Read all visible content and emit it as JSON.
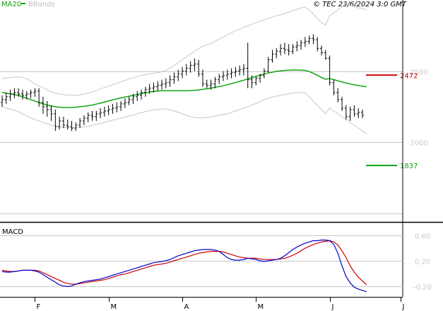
{
  "header": {
    "ma_label": "MA20",
    "bbands_label": "BBands",
    "copyright": "© TEC 23/6/2024 3:0 GMT"
  },
  "colors": {
    "price_bars": "#000000",
    "ma20": "#12a312",
    "bbands": "#c8c8c8",
    "grid": "#c8c8c8",
    "resistance": "#cc0000",
    "support": "#12a312",
    "macd": "#0000cc",
    "signal": "#cc0000",
    "frame": "#000000"
  },
  "chart_data": [
    {
      "type": "line",
      "name": "price-panel",
      "ylim": [
        1450,
        3000
      ],
      "ytick_values": [
        2500,
        2000,
        1500
      ],
      "ytick_labels": [
        "2500",
        "2000",
        ""
      ],
      "resistance": {
        "value": 2472,
        "label": "2472"
      },
      "support": {
        "value": 1837,
        "label": "1837"
      },
      "x_labels": [
        "F",
        "M",
        "A",
        "M",
        "J",
        "J"
      ],
      "ohlc": [
        [
          2280,
          2330,
          2250,
          2300
        ],
        [
          2300,
          2350,
          2270,
          2320
        ],
        [
          2320,
          2370,
          2290,
          2340
        ],
        [
          2340,
          2380,
          2310,
          2350
        ],
        [
          2350,
          2380,
          2320,
          2340
        ],
        [
          2340,
          2370,
          2300,
          2330
        ],
        [
          2330,
          2360,
          2300,
          2340
        ],
        [
          2340,
          2370,
          2310,
          2350
        ],
        [
          2350,
          2380,
          2320,
          2360
        ],
        [
          2360,
          2380,
          2250,
          2280
        ],
        [
          2280,
          2320,
          2200,
          2250
        ],
        [
          2250,
          2290,
          2180,
          2230
        ],
        [
          2230,
          2260,
          2150,
          2200
        ],
        [
          2200,
          2230,
          2080,
          2110
        ],
        [
          2110,
          2180,
          2090,
          2150
        ],
        [
          2150,
          2180,
          2100,
          2120
        ],
        [
          2120,
          2160,
          2090,
          2110
        ],
        [
          2110,
          2150,
          2080,
          2100
        ],
        [
          2100,
          2140,
          2080,
          2120
        ],
        [
          2120,
          2170,
          2100,
          2150
        ],
        [
          2150,
          2190,
          2120,
          2170
        ],
        [
          2170,
          2210,
          2140,
          2190
        ],
        [
          2190,
          2220,
          2150,
          2180
        ],
        [
          2180,
          2220,
          2150,
          2200
        ],
        [
          2200,
          2240,
          2170,
          2210
        ],
        [
          2210,
          2250,
          2180,
          2220
        ],
        [
          2220,
          2260,
          2190,
          2230
        ],
        [
          2230,
          2270,
          2200,
          2240
        ],
        [
          2240,
          2280,
          2210,
          2250
        ],
        [
          2250,
          2290,
          2220,
          2270
        ],
        [
          2270,
          2310,
          2240,
          2280
        ],
        [
          2280,
          2320,
          2260,
          2300
        ],
        [
          2300,
          2340,
          2270,
          2320
        ],
        [
          2320,
          2360,
          2290,
          2330
        ],
        [
          2330,
          2370,
          2300,
          2350
        ],
        [
          2350,
          2390,
          2320,
          2370
        ],
        [
          2370,
          2410,
          2340,
          2380
        ],
        [
          2380,
          2420,
          2350,
          2390
        ],
        [
          2390,
          2430,
          2360,
          2400
        ],
        [
          2400,
          2440,
          2370,
          2410
        ],
        [
          2410,
          2450,
          2380,
          2420
        ],
        [
          2420,
          2470,
          2390,
          2440
        ],
        [
          2440,
          2490,
          2410,
          2460
        ],
        [
          2460,
          2510,
          2430,
          2480
        ],
        [
          2480,
          2530,
          2450,
          2500
        ],
        [
          2500,
          2550,
          2470,
          2520
        ],
        [
          2520,
          2570,
          2490,
          2540
        ],
        [
          2540,
          2590,
          2500,
          2550
        ],
        [
          2550,
          2580,
          2460,
          2480
        ],
        [
          2480,
          2510,
          2390,
          2410
        ],
        [
          2410,
          2440,
          2380,
          2400
        ],
        [
          2400,
          2440,
          2370,
          2410
        ],
        [
          2410,
          2460,
          2380,
          2440
        ],
        [
          2440,
          2480,
          2410,
          2460
        ],
        [
          2460,
          2500,
          2430,
          2470
        ],
        [
          2470,
          2510,
          2440,
          2480
        ],
        [
          2480,
          2520,
          2450,
          2490
        ],
        [
          2490,
          2530,
          2460,
          2500
        ],
        [
          2500,
          2540,
          2470,
          2510
        ],
        [
          2510,
          2550,
          2470,
          2520
        ],
        [
          2520,
          2700,
          2380,
          2440
        ],
        [
          2440,
          2470,
          2380,
          2420
        ],
        [
          2420,
          2460,
          2400,
          2450
        ],
        [
          2450,
          2480,
          2420,
          2470
        ],
        [
          2470,
          2520,
          2450,
          2500
        ],
        [
          2500,
          2600,
          2490,
          2580
        ],
        [
          2580,
          2650,
          2560,
          2620
        ],
        [
          2620,
          2660,
          2590,
          2640
        ],
        [
          2640,
          2690,
          2610,
          2660
        ],
        [
          2660,
          2700,
          2620,
          2650
        ],
        [
          2650,
          2690,
          2610,
          2640
        ],
        [
          2640,
          2690,
          2620,
          2670
        ],
        [
          2670,
          2710,
          2640,
          2680
        ],
        [
          2680,
          2720,
          2650,
          2700
        ],
        [
          2700,
          2740,
          2670,
          2710
        ],
        [
          2710,
          2750,
          2690,
          2730
        ],
        [
          2730,
          2760,
          2690,
          2720
        ],
        [
          2720,
          2740,
          2640,
          2660
        ],
        [
          2660,
          2680,
          2610,
          2630
        ],
        [
          2630,
          2650,
          2580,
          2590
        ],
        [
          2590,
          2610,
          2400,
          2420
        ],
        [
          2420,
          2440,
          2330,
          2350
        ],
        [
          2350,
          2380,
          2280,
          2300
        ],
        [
          2300,
          2320,
          2220,
          2240
        ],
        [
          2240,
          2260,
          2160,
          2180
        ],
        [
          2180,
          2250,
          2150,
          2230
        ],
        [
          2230,
          2260,
          2180,
          2200
        ],
        [
          2200,
          2240,
          2170,
          2210
        ],
        [
          2210,
          2230,
          2170,
          2190
        ]
      ],
      "ma20": [
        2350,
        2345,
        2340,
        2335,
        2330,
        2320,
        2310,
        2300,
        2290,
        2280,
        2270,
        2262,
        2255,
        2250,
        2247,
        2245,
        2244,
        2245,
        2247,
        2250,
        2253,
        2257,
        2262,
        2268,
        2275,
        2282,
        2290,
        2298,
        2305,
        2312,
        2318,
        2324,
        2330,
        2336,
        2342,
        2348,
        2353,
        2357,
        2360,
        2362,
        2362,
        2362,
        2362,
        2362,
        2362,
        2362,
        2363,
        2365,
        2368,
        2372,
        2376,
        2381,
        2386,
        2392,
        2398,
        2405,
        2412,
        2420,
        2428,
        2436,
        2445,
        2454,
        2463,
        2472,
        2480,
        2487,
        2493,
        2498,
        2502,
        2505,
        2507,
        2508,
        2508,
        2507,
        2505,
        2497,
        2485,
        2470,
        2455,
        2443,
        2448,
        2440,
        2432,
        2424,
        2417,
        2410,
        2404,
        2399,
        2394,
        2390
      ],
      "bb_upper": [
        2450,
        2452,
        2455,
        2458,
        2460,
        2455,
        2445,
        2430,
        2410,
        2395,
        2385,
        2370,
        2355,
        2345,
        2340,
        2335,
        2332,
        2330,
        2330,
        2332,
        2340,
        2345,
        2355,
        2365,
        2375,
        2385,
        2395,
        2405,
        2415,
        2425,
        2435,
        2445,
        2455,
        2462,
        2470,
        2476,
        2480,
        2485,
        2490,
        2495,
        2505,
        2520,
        2540,
        2560,
        2580,
        2600,
        2620,
        2640,
        2660,
        2675,
        2685,
        2695,
        2710,
        2725,
        2740,
        2755,
        2770,
        2785,
        2795,
        2808,
        2818,
        2830,
        2840,
        2852,
        2860,
        2870,
        2880,
        2890,
        2895,
        2905,
        2915,
        2925,
        2935,
        2945,
        2950,
        2930,
        2900,
        2870,
        2840,
        2825,
        2890,
        2910,
        2930,
        2955,
        2975,
        2960,
        2955,
        2945,
        2940,
        2930
      ],
      "bb_lower": [
        2250,
        2240,
        2232,
        2225,
        2215,
        2200,
        2185,
        2170,
        2160,
        2150,
        2140,
        2130,
        2120,
        2115,
        2108,
        2105,
        2103,
        2102,
        2103,
        2105,
        2108,
        2112,
        2118,
        2125,
        2132,
        2140,
        2148,
        2155,
        2162,
        2170,
        2178,
        2185,
        2192,
        2200,
        2208,
        2215,
        2222,
        2228,
        2232,
        2235,
        2233,
        2228,
        2220,
        2210,
        2200,
        2190,
        2180,
        2175,
        2172,
        2172,
        2175,
        2180,
        2185,
        2190,
        2195,
        2200,
        2210,
        2220,
        2230,
        2240,
        2250,
        2262,
        2272,
        2285,
        2300,
        2310,
        2318,
        2325,
        2330,
        2335,
        2340,
        2345,
        2348,
        2350,
        2345,
        2320,
        2290,
        2260,
        2230,
        2200,
        2240,
        2220,
        2200,
        2180,
        2160,
        2140,
        2120,
        2100,
        2080,
        2060
      ]
    },
    {
      "type": "line",
      "name": "macd-panel",
      "title": "MACD",
      "ylim": [
        -0.35,
        0.75
      ],
      "ytick_values": [
        0.6,
        0.2,
        -0.2
      ],
      "ytick_labels": [
        "0.60",
        "0.20",
        "-0.20"
      ],
      "series": [
        {
          "role": "macd",
          "values": [
            0.03,
            0.02,
            0.02,
            0.03,
            0.04,
            0.05,
            0.05,
            0.05,
            0.04,
            0.02,
            -0.02,
            -0.06,
            -0.1,
            -0.14,
            -0.18,
            -0.2,
            -0.21,
            -0.2,
            -0.17,
            -0.15,
            -0.13,
            -0.12,
            -0.11,
            -0.1,
            -0.09,
            -0.07,
            -0.05,
            -0.03,
            -0.01,
            0.01,
            0.03,
            0.05,
            0.07,
            0.09,
            0.11,
            0.13,
            0.15,
            0.17,
            0.18,
            0.19,
            0.2,
            0.22,
            0.25,
            0.28,
            0.3,
            0.32,
            0.34,
            0.36,
            0.37,
            0.38,
            0.38,
            0.38,
            0.37,
            0.35,
            0.3,
            0.25,
            0.22,
            0.21,
            0.21,
            0.22,
            0.24,
            0.23,
            0.22,
            0.2,
            0.19,
            0.2,
            0.21,
            0.22,
            0.24,
            0.28,
            0.33,
            0.38,
            0.42,
            0.45,
            0.48,
            0.5,
            0.52,
            0.52,
            0.53,
            0.53,
            0.52,
            0.46,
            0.32,
            0.12,
            -0.05,
            -0.15,
            -0.22,
            -0.25,
            -0.27,
            -0.29
          ]
        },
        {
          "role": "signal",
          "values": [
            0.05,
            0.04,
            0.03,
            0.03,
            0.04,
            0.05,
            0.05,
            0.05,
            0.05,
            0.04,
            0.01,
            -0.02,
            -0.05,
            -0.08,
            -0.11,
            -0.14,
            -0.16,
            -0.17,
            -0.17,
            -0.16,
            -0.15,
            -0.14,
            -0.13,
            -0.12,
            -0.11,
            -0.1,
            -0.08,
            -0.06,
            -0.04,
            -0.02,
            -0.01,
            0.01,
            0.03,
            0.05,
            0.07,
            0.09,
            0.11,
            0.13,
            0.14,
            0.15,
            0.16,
            0.18,
            0.2,
            0.22,
            0.24,
            0.26,
            0.28,
            0.3,
            0.32,
            0.33,
            0.34,
            0.35,
            0.35,
            0.35,
            0.34,
            0.32,
            0.3,
            0.28,
            0.26,
            0.25,
            0.24,
            0.24,
            0.24,
            0.23,
            0.22,
            0.22,
            0.22,
            0.22,
            0.23,
            0.24,
            0.26,
            0.29,
            0.32,
            0.36,
            0.4,
            0.43,
            0.46,
            0.48,
            0.5,
            0.51,
            0.52,
            0.5,
            0.45,
            0.36,
            0.25,
            0.12,
            0.02,
            -0.06,
            -0.12,
            -0.18
          ]
        }
      ]
    }
  ]
}
